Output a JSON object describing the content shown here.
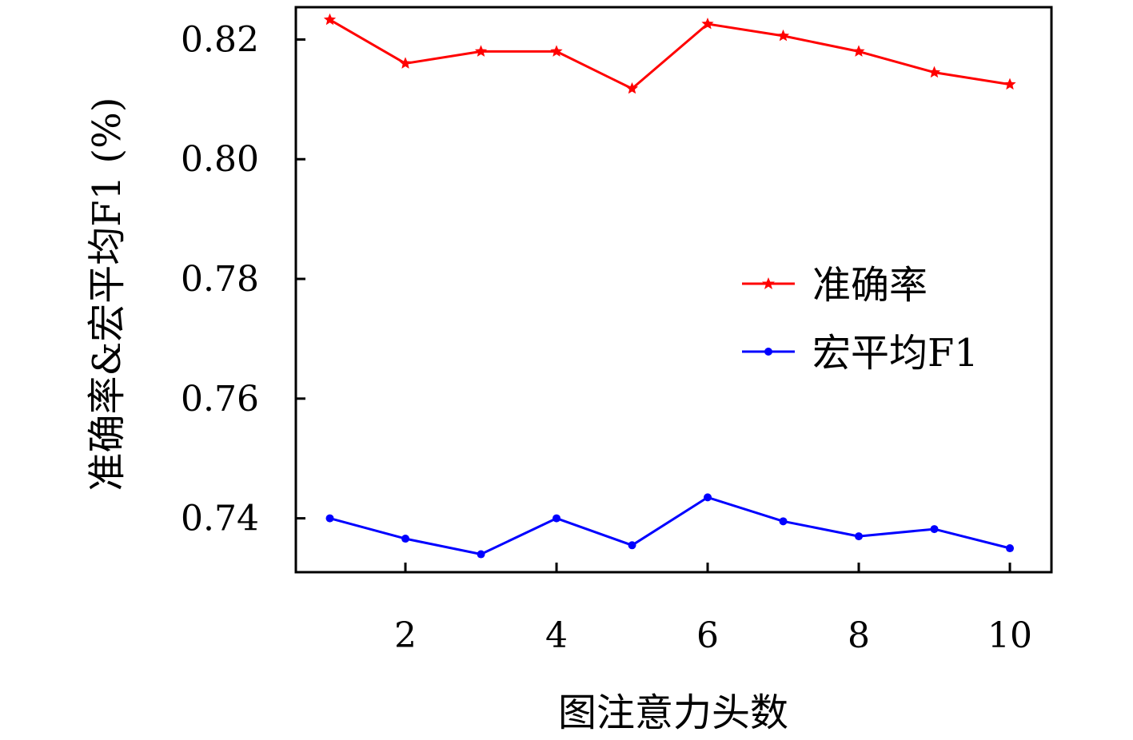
{
  "chart_data": {
    "type": "line",
    "title": "",
    "xlabel": "图注意力头数",
    "ylabel": "准确率&宏平均F1 (%)",
    "x": [
      1,
      2,
      3,
      4,
      5,
      6,
      7,
      8,
      9,
      10
    ],
    "xticks": [
      2,
      4,
      6,
      8,
      10
    ],
    "yticks": [
      0.74,
      0.76,
      0.78,
      0.8,
      0.82
    ],
    "ytick_labels": [
      "0.74",
      "0.76",
      "0.78",
      "0.80",
      "0.82"
    ],
    "xlim": [
      0.55,
      10.55
    ],
    "ylim": [
      0.731,
      0.8254
    ],
    "grid": false,
    "legend_position": "center-right",
    "series": [
      {
        "name": "准确率",
        "color": "#ff0000",
        "marker": "star",
        "values": [
          0.8233,
          0.816,
          0.818,
          0.818,
          0.8118,
          0.8226,
          0.8206,
          0.818,
          0.8145,
          0.8125
        ]
      },
      {
        "name": "宏平均F1",
        "color": "#0000ff",
        "marker": "dot",
        "values": [
          0.74,
          0.7366,
          0.734,
          0.74,
          0.7355,
          0.7435,
          0.7395,
          0.737,
          0.7382,
          0.735
        ]
      }
    ]
  }
}
